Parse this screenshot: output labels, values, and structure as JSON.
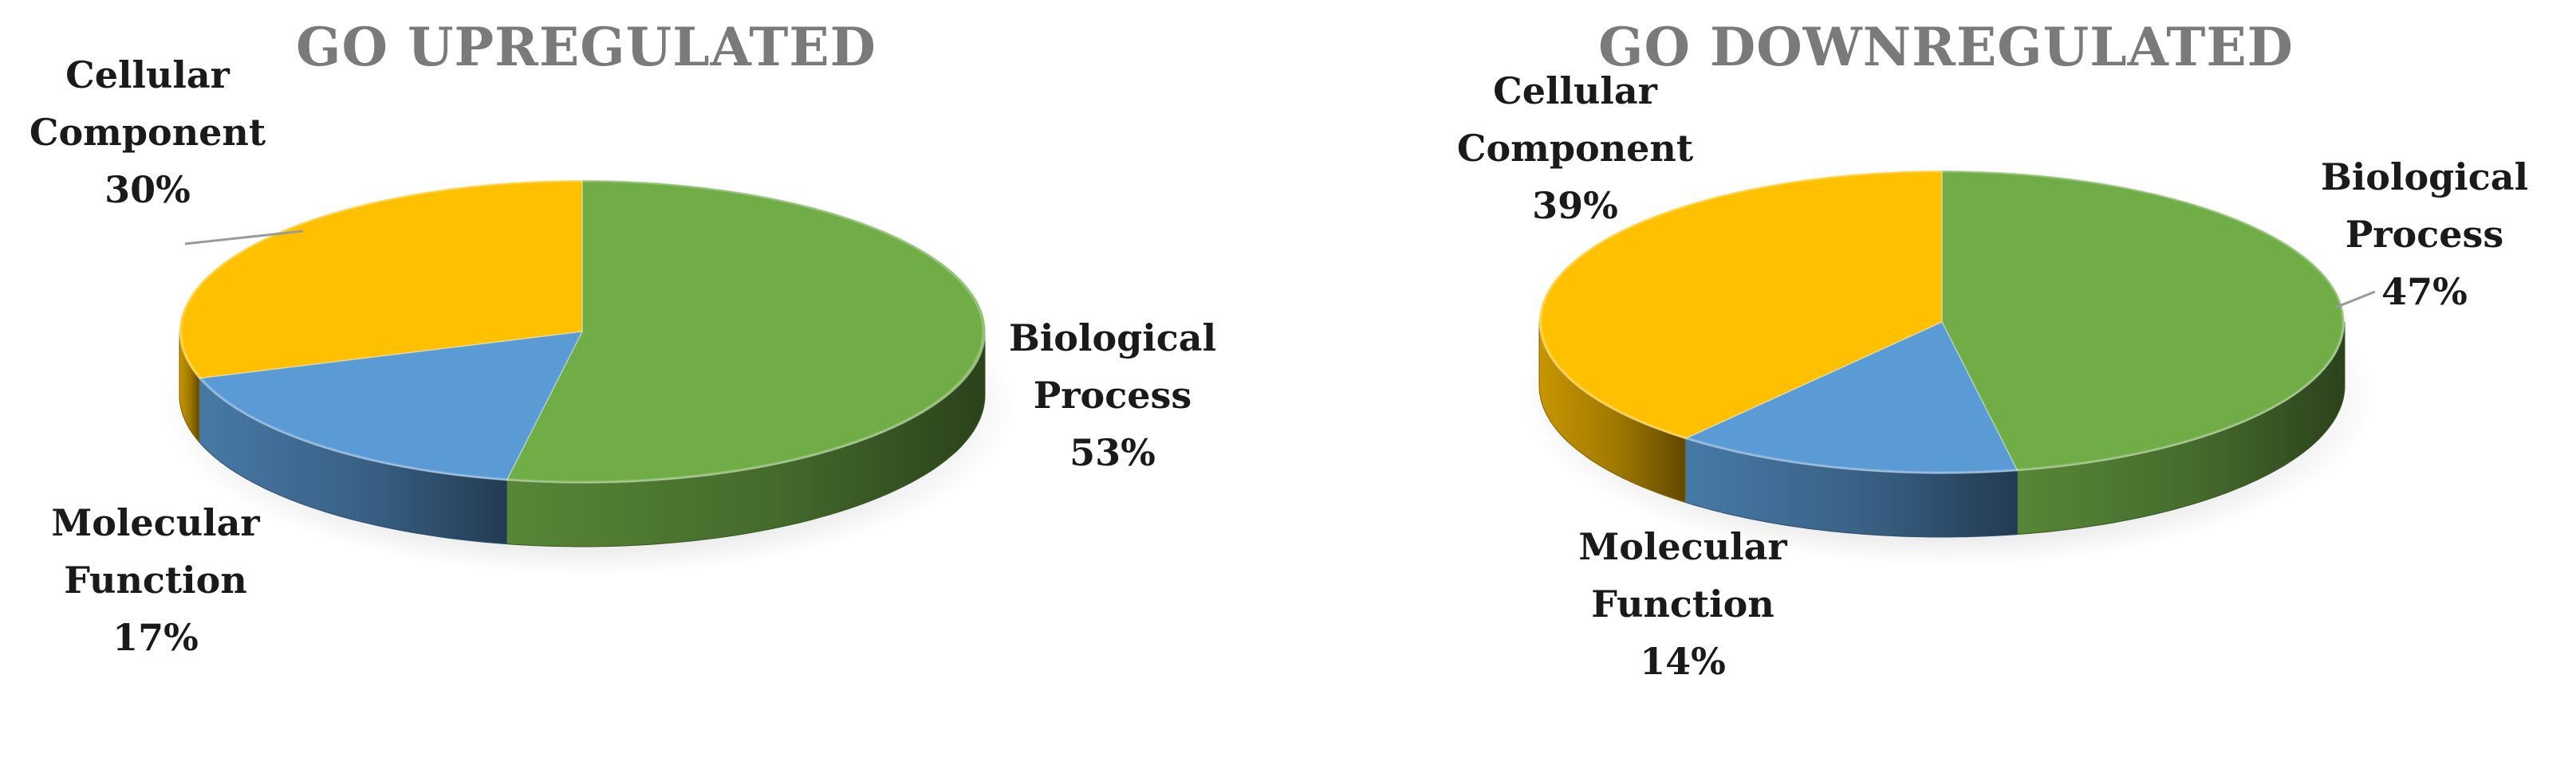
{
  "chart_data": [
    {
      "type": "pie",
      "title": "GO UPREGULATED",
      "slices": [
        {
          "name": "Biological Process",
          "value": 53,
          "label": "53%",
          "color": "#70AD47"
        },
        {
          "name": "Molecular Function",
          "value": 17,
          "label": "17%",
          "color": "#5B9BD5"
        },
        {
          "name": "Cellular Component",
          "value": 30,
          "label": "30%",
          "color": "#FFC000"
        }
      ]
    },
    {
      "type": "pie",
      "title": "GO DOWNREGULATED",
      "slices": [
        {
          "name": "Biological Process",
          "value": 47,
          "label": "47%",
          "color": "#70AD47"
        },
        {
          "name": "Molecular Function",
          "value": 14,
          "label": "14%",
          "color": "#5B9BD5"
        },
        {
          "name": "Cellular Component",
          "value": 39,
          "label": "39%",
          "color": "#FFC000"
        }
      ]
    }
  ]
}
